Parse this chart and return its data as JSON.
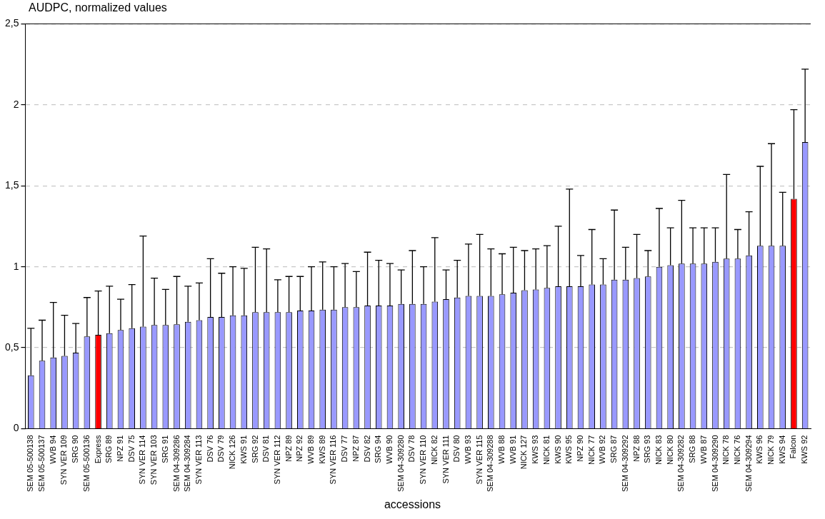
{
  "chart_data": {
    "type": "bar",
    "title": "AUDPC, normalized values",
    "xlabel": "accessions",
    "categories": [
      "SEM 05-500138",
      "SEM 05-500137",
      "WVB 94",
      "SYN VER 109",
      "SRG 90",
      "SEM 05-500136",
      "Express",
      "SRG 89",
      "NPZ 91",
      "DSV 75",
      "SYN VER 114",
      "SYN VER 103",
      "SRG 91",
      "SEM 04-309286",
      "SEM 04-309284",
      "SYN VER 113",
      "DSV 76",
      "DSV 79",
      "NICK 126",
      "KWS 91",
      "SRG 92",
      "DSV 81",
      "SYN VER 112",
      "NPZ 89",
      "NPZ 92",
      "WVB 89",
      "KWS 89",
      "SYN VER 116",
      "DSV 77",
      "NPZ 87",
      "DSV 82",
      "SRG 94",
      "WVB 90",
      "SEM 04-309280",
      "DSV 78",
      "SYN VER 110",
      "NICK 82",
      "SYN VER 111",
      "DSV 80",
      "WVB 93",
      "SYN VER 115",
      "SEM 04-309288",
      "WVB 88",
      "WVB 91",
      "NICK 127",
      "KWS 93",
      "NICK 81",
      "KWS 90",
      "KWS 95",
      "NPZ 90",
      "NICK 77",
      "WVB 92",
      "SRG 87",
      "SEM 04-309292",
      "NPZ 88",
      "SRG 93",
      "NICK 83",
      "NICK 80",
      "SEM 04-309282",
      "SRG 88",
      "WVB 87",
      "SEM 04-309290",
      "NICK 78",
      "NICK 76",
      "SEM 04-309294",
      "KWS 96",
      "NICK 79",
      "KWS 94",
      "Falcon",
      "KWS 92"
    ],
    "values": [
      0.33,
      0.42,
      0.44,
      0.45,
      0.47,
      0.57,
      0.58,
      0.59,
      0.61,
      0.62,
      0.63,
      0.64,
      0.64,
      0.645,
      0.66,
      0.67,
      0.69,
      0.69,
      0.7,
      0.7,
      0.72,
      0.72,
      0.72,
      0.72,
      0.73,
      0.73,
      0.735,
      0.735,
      0.75,
      0.75,
      0.76,
      0.76,
      0.76,
      0.77,
      0.77,
      0.77,
      0.785,
      0.8,
      0.81,
      0.82,
      0.82,
      0.82,
      0.83,
      0.84,
      0.855,
      0.86,
      0.87,
      0.88,
      0.88,
      0.88,
      0.89,
      0.89,
      0.92,
      0.92,
      0.93,
      0.94,
      1.0,
      1.01,
      1.02,
      1.02,
      1.02,
      1.03,
      1.05,
      1.05,
      1.07,
      1.13,
      1.13,
      1.13,
      1.42,
      1.77
    ],
    "colors": [
      "#9999ff",
      "#9999ff",
      "#9999ff",
      "#9999ff",
      "#9999ff",
      "#9999ff",
      "#ff0000",
      "#9999ff",
      "#9999ff",
      "#9999ff",
      "#9999ff",
      "#9999ff",
      "#9999ff",
      "#9999ff",
      "#9999ff",
      "#9999ff",
      "#9999ff",
      "#9999ff",
      "#9999ff",
      "#9999ff",
      "#9999ff",
      "#9999ff",
      "#9999ff",
      "#9999ff",
      "#9999ff",
      "#9999ff",
      "#9999ff",
      "#9999ff",
      "#9999ff",
      "#9999ff",
      "#9999ff",
      "#9999ff",
      "#9999ff",
      "#9999ff",
      "#9999ff",
      "#9999ff",
      "#9999ff",
      "#9999ff",
      "#9999ff",
      "#9999ff",
      "#9999ff",
      "#9999ff",
      "#9999ff",
      "#9999ff",
      "#9999ff",
      "#9999ff",
      "#9999ff",
      "#9999ff",
      "#9999ff",
      "#9999ff",
      "#9999ff",
      "#9999ff",
      "#9999ff",
      "#9999ff",
      "#9999ff",
      "#9999ff",
      "#9999ff",
      "#9999ff",
      "#9999ff",
      "#9999ff",
      "#9999ff",
      "#9999ff",
      "#9999ff",
      "#9999ff",
      "#9999ff",
      "#9999ff",
      "#9999ff",
      "#9999ff",
      "#ff0000",
      "#9999ff"
    ],
    "errors": [
      [
        0.33,
        0.62
      ],
      [
        0.42,
        0.67
      ],
      [
        0.44,
        0.78
      ],
      [
        0.45,
        0.7
      ],
      [
        0.47,
        0.65
      ],
      [
        0.57,
        0.81
      ],
      [
        0.58,
        0.85
      ],
      [
        0.59,
        0.88
      ],
      [
        0.61,
        0.8
      ],
      [
        0.62,
        0.89
      ],
      [
        0.63,
        1.19
      ],
      [
        0.64,
        0.93
      ],
      [
        0.64,
        0.86
      ],
      [
        0.645,
        0.94
      ],
      [
        0.66,
        0.88
      ],
      [
        0.67,
        0.9
      ],
      [
        0.69,
        1.05
      ],
      [
        0.69,
        0.96
      ],
      [
        0.7,
        1.0
      ],
      [
        0.7,
        0.99
      ],
      [
        0.72,
        1.12
      ],
      [
        0.72,
        1.11
      ],
      [
        0.72,
        0.92
      ],
      [
        0.72,
        0.94
      ],
      [
        0.73,
        0.94
      ],
      [
        0.73,
        1.0
      ],
      [
        0.735,
        1.03
      ],
      [
        0.735,
        1.0
      ],
      [
        0.75,
        1.02
      ],
      [
        0.75,
        0.97
      ],
      [
        0.76,
        1.09
      ],
      [
        0.76,
        1.04
      ],
      [
        0.76,
        1.02
      ],
      [
        0.77,
        0.98
      ],
      [
        0.77,
        1.1
      ],
      [
        0.77,
        1.0
      ],
      [
        0.785,
        1.18
      ],
      [
        0.8,
        0.98
      ],
      [
        0.81,
        1.04
      ],
      [
        0.82,
        1.14
      ],
      [
        0.82,
        1.2
      ],
      [
        0.82,
        1.11
      ],
      [
        0.83,
        1.08
      ],
      [
        0.84,
        1.12
      ],
      [
        0.855,
        1.1
      ],
      [
        0.86,
        1.11
      ],
      [
        0.87,
        1.13
      ],
      [
        0.88,
        1.25
      ],
      [
        0.88,
        1.48
      ],
      [
        0.88,
        1.07
      ],
      [
        0.89,
        1.23
      ],
      [
        0.89,
        1.05
      ],
      [
        0.92,
        1.35
      ],
      [
        0.92,
        1.12
      ],
      [
        0.93,
        1.2
      ],
      [
        0.94,
        1.1
      ],
      [
        1.0,
        1.36
      ],
      [
        1.01,
        1.24
      ],
      [
        1.02,
        1.41
      ],
      [
        1.02,
        1.24
      ],
      [
        1.02,
        1.24
      ],
      [
        1.03,
        1.24
      ],
      [
        1.05,
        1.57
      ],
      [
        1.05,
        1.23
      ],
      [
        1.07,
        1.34
      ],
      [
        1.13,
        1.62
      ],
      [
        1.13,
        1.76
      ],
      [
        1.13,
        1.46
      ],
      [
        1.42,
        1.97
      ],
      [
        1.77,
        2.22
      ]
    ],
    "ylim": [
      0,
      2.5
    ],
    "yticks": [
      0,
      {
        "value": 0.5,
        "label": "0,5"
      },
      1,
      {
        "value": 1.5,
        "label": "1,5"
      },
      2,
      {
        "value": 2.5,
        "label": "2,5"
      }
    ],
    "grid": "y",
    "line_style": "dashed"
  }
}
